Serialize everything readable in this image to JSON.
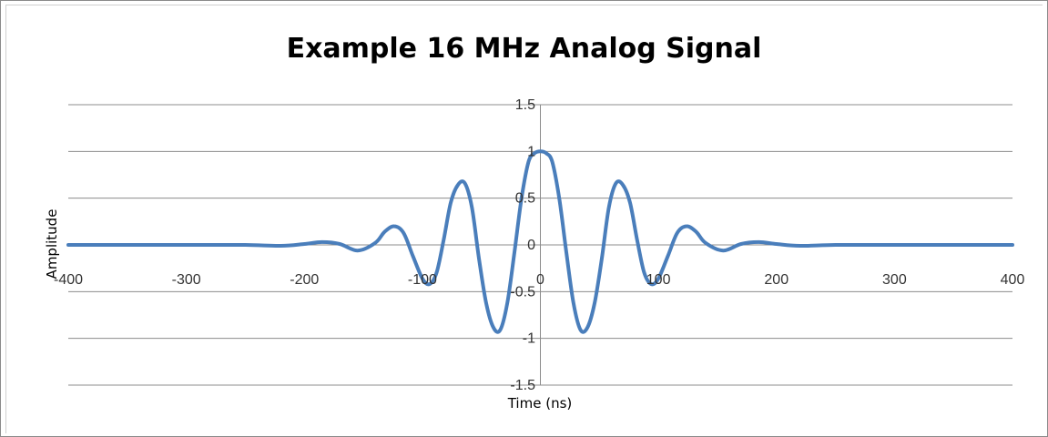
{
  "chart_data": {
    "type": "line",
    "title": "Example 16 MHz Analog Signal",
    "xlabel": "Time (ns)",
    "ylabel": "Amplitude",
    "xlim": [
      -400,
      400
    ],
    "ylim": [
      -1.5,
      1.5
    ],
    "x_ticks": [
      "-400",
      "-300",
      "-200",
      "-100",
      "0",
      "100",
      "200",
      "300",
      "400"
    ],
    "y_ticks": [
      "1.5",
      "1",
      "0.5",
      "0",
      "-0.5",
      "-1",
      "-1.5"
    ],
    "grid": "horizontal",
    "series": [
      {
        "color": "#4a7ebb",
        "x": [
          -400,
          -350,
          -300,
          -250,
          -220,
          -200,
          -185,
          -170,
          -155,
          -140,
          -132,
          -124,
          -116,
          -108,
          -100,
          -94,
          -88,
          -82,
          -76,
          -70,
          -64,
          -58,
          -52,
          -46,
          -40,
          -34,
          -28,
          -22,
          -16,
          -10,
          -5,
          0,
          5,
          10,
          16,
          22,
          28,
          34,
          40,
          46,
          52,
          58,
          64,
          70,
          76,
          82,
          88,
          94,
          100,
          108,
          116,
          124,
          132,
          140,
          155,
          170,
          185,
          200,
          220,
          250,
          300,
          350,
          400
        ],
        "y": [
          0,
          0,
          0,
          0,
          -0.01,
          0.01,
          0.03,
          0.01,
          -0.06,
          0.02,
          0.14,
          0.2,
          0.13,
          -0.12,
          -0.36,
          -0.42,
          -0.3,
          0.05,
          0.45,
          0.64,
          0.66,
          0.4,
          -0.15,
          -0.62,
          -0.88,
          -0.91,
          -0.62,
          -0.08,
          0.5,
          0.89,
          0.98,
          1.0,
          0.98,
          0.89,
          0.5,
          -0.08,
          -0.62,
          -0.91,
          -0.88,
          -0.62,
          -0.15,
          0.4,
          0.66,
          0.64,
          0.45,
          0.05,
          -0.3,
          -0.42,
          -0.36,
          -0.12,
          0.13,
          0.2,
          0.14,
          0.02,
          -0.06,
          0.01,
          0.03,
          0.01,
          -0.01,
          0,
          0,
          0,
          0
        ]
      }
    ]
  }
}
